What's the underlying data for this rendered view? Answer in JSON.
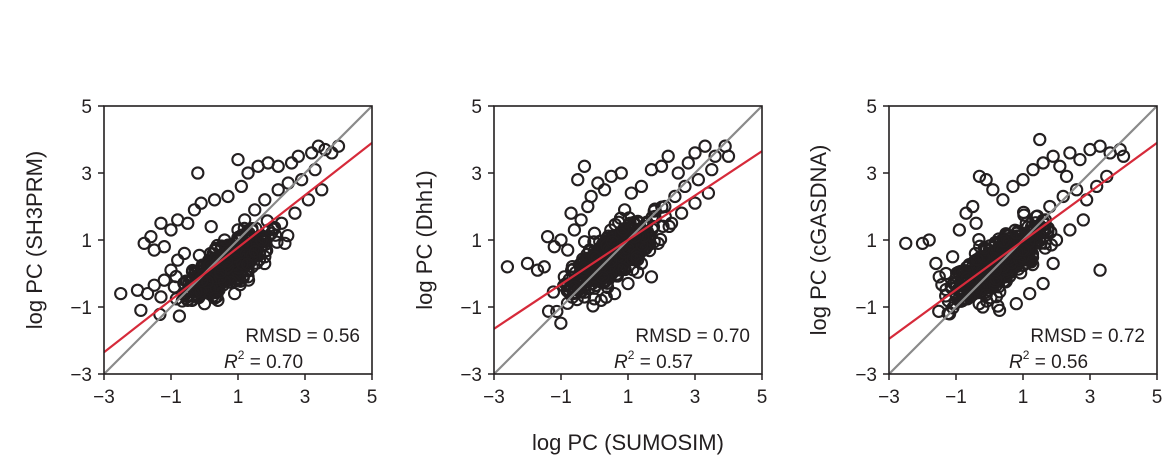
{
  "shared_xlabel": "log PC (SUMOSIM)",
  "chart_data": [
    {
      "type": "scatter",
      "title": "",
      "xlabel": "",
      "ylabel": "log PC (SH3PRM)",
      "xlim": [
        -3,
        5
      ],
      "ylim": [
        -3,
        5
      ],
      "xticks": [
        "−3",
        "−1",
        "1",
        "3",
        "5"
      ],
      "yticks": [
        "5",
        "3",
        "1",
        "−1",
        "−3"
      ],
      "identity_line": {
        "from": [
          -3,
          -3
        ],
        "to": [
          5,
          5
        ],
        "color": "#8a8a8a"
      },
      "fit_line": {
        "from": [
          -3,
          -2.35
        ],
        "to": [
          5,
          3.9
        ],
        "color": "#d62a3a"
      },
      "annotation": {
        "rmsd": "RMSD = 0.56",
        "r2_label": "R",
        "r2_sup": "2",
        "r2_value": " = 0.70"
      },
      "cluster": {
        "center": [
          0.6,
          0.2
        ],
        "spread": 0.55
      },
      "points": [
        [
          -2.5,
          -0.6
        ],
        [
          -2.0,
          -0.5
        ],
        [
          -1.9,
          -1.1
        ],
        [
          -1.7,
          -0.6
        ],
        [
          -1.5,
          -0.35
        ],
        [
          -1.3,
          -0.7
        ],
        [
          -1.2,
          -0.2
        ],
        [
          -1.0,
          0.1
        ],
        [
          -0.8,
          0.4
        ],
        [
          -0.6,
          0.6
        ],
        [
          -1.5,
          0.7
        ],
        [
          -1.8,
          0.9
        ],
        [
          -1.6,
          1.1
        ],
        [
          -1.2,
          0.8
        ],
        [
          -1.0,
          1.3
        ],
        [
          -0.8,
          1.6
        ],
        [
          -1.3,
          1.5
        ],
        [
          -0.5,
          1.5
        ],
        [
          -0.3,
          1.9
        ],
        [
          -0.1,
          2.1
        ],
        [
          0.3,
          2.2
        ],
        [
          0.7,
          2.3
        ],
        [
          1.1,
          2.6
        ],
        [
          1.3,
          3.0
        ],
        [
          1.6,
          3.2
        ],
        [
          1.9,
          3.3
        ],
        [
          2.2,
          3.2
        ],
        [
          2.6,
          3.3
        ],
        [
          2.8,
          3.5
        ],
        [
          3.2,
          3.6
        ],
        [
          3.4,
          3.8
        ],
        [
          3.6,
          3.7
        ],
        [
          3.8,
          3.6
        ],
        [
          4.0,
          3.8
        ],
        [
          3.3,
          3.1
        ],
        [
          2.9,
          2.8
        ],
        [
          2.5,
          2.7
        ],
        [
          2.2,
          2.5
        ],
        [
          1.8,
          2.2
        ],
        [
          1.5,
          1.9
        ],
        [
          1.2,
          1.6
        ],
        [
          1.0,
          1.3
        ],
        [
          0.6,
          1.0
        ],
        [
          2.0,
          1.2
        ],
        [
          2.3,
          1.5
        ],
        [
          2.7,
          1.8
        ],
        [
          3.1,
          2.2
        ],
        [
          3.5,
          2.5
        ],
        [
          2.4,
          0.9
        ],
        [
          1.8,
          0.5
        ],
        [
          1.3,
          -0.1
        ],
        [
          0.9,
          -0.6
        ],
        [
          0.4,
          -0.8
        ],
        [
          0.0,
          -0.9
        ],
        [
          -0.5,
          -0.8
        ],
        [
          -0.2,
          3.0
        ],
        [
          1.0,
          3.4
        ],
        [
          0.2,
          1.4
        ],
        [
          -0.9,
          -0.4
        ],
        [
          1.7,
          1.0
        ]
      ]
    },
    {
      "type": "scatter",
      "title": "",
      "xlabel": "",
      "ylabel": "log PC (Dhh1)",
      "xlim": [
        -3,
        5
      ],
      "ylim": [
        -3,
        5
      ],
      "xticks": [
        "−3",
        "−1",
        "1",
        "3",
        "5"
      ],
      "yticks": [
        "5",
        "3",
        "1",
        "−1",
        "−3"
      ],
      "identity_line": {
        "from": [
          -3,
          -3
        ],
        "to": [
          5,
          5
        ],
        "color": "#8a8a8a"
      },
      "fit_line": {
        "from": [
          -3,
          -1.65
        ],
        "to": [
          5,
          3.65
        ],
        "color": "#d62a3a"
      },
      "annotation": {
        "rmsd": "RMSD = 0.70",
        "r2_label": "R",
        "r2_sup": "2",
        "r2_value": " = 0.57"
      },
      "cluster": {
        "center": [
          0.5,
          0.5
        ],
        "spread": 0.6
      },
      "points": [
        [
          -2.6,
          0.2
        ],
        [
          -2.0,
          0.3
        ],
        [
          -1.7,
          0.1
        ],
        [
          -1.5,
          0.2
        ],
        [
          -1.2,
          0.8
        ],
        [
          -1.0,
          1.0
        ],
        [
          -0.8,
          0.7
        ],
        [
          -0.6,
          1.3
        ],
        [
          -0.4,
          1.6
        ],
        [
          -0.7,
          1.8
        ],
        [
          -0.2,
          2.0
        ],
        [
          -0.1,
          2.3
        ],
        [
          0.1,
          2.7
        ],
        [
          0.3,
          2.5
        ],
        [
          0.5,
          2.9
        ],
        [
          -0.5,
          2.8
        ],
        [
          -0.3,
          3.2
        ],
        [
          0.8,
          3.0
        ],
        [
          1.1,
          2.4
        ],
        [
          1.4,
          2.6
        ],
        [
          1.7,
          3.1
        ],
        [
          2.0,
          3.2
        ],
        [
          2.2,
          3.5
        ],
        [
          2.5,
          3.0
        ],
        [
          2.8,
          3.3
        ],
        [
          3.0,
          3.6
        ],
        [
          3.3,
          3.8
        ],
        [
          3.6,
          3.5
        ],
        [
          3.9,
          3.8
        ],
        [
          4.0,
          3.5
        ],
        [
          3.5,
          3.1
        ],
        [
          3.1,
          2.8
        ],
        [
          2.7,
          2.6
        ],
        [
          2.4,
          2.3
        ],
        [
          2.1,
          2.0
        ],
        [
          1.8,
          1.7
        ],
        [
          1.5,
          1.4
        ],
        [
          1.2,
          1.1
        ],
        [
          2.3,
          1.5
        ],
        [
          2.6,
          1.8
        ],
        [
          3.0,
          2.1
        ],
        [
          3.4,
          2.4
        ],
        [
          1.9,
          0.9
        ],
        [
          1.4,
          0.3
        ],
        [
          1.0,
          -0.3
        ],
        [
          0.6,
          -0.6
        ],
        [
          0.2,
          -0.8
        ],
        [
          -0.3,
          -0.7
        ],
        [
          -0.6,
          -0.4
        ],
        [
          -0.9,
          -0.1
        ],
        [
          1.7,
          -0.1
        ],
        [
          0.0,
          1.2
        ],
        [
          0.9,
          1.9
        ],
        [
          -1.4,
          1.1
        ]
      ]
    },
    {
      "type": "scatter",
      "title": "",
      "xlabel": "",
      "ylabel": "log PC (cGASDNA)",
      "xlim": [
        -3,
        5
      ],
      "ylim": [
        -3,
        5
      ],
      "xticks": [
        "−3",
        "−1",
        "1",
        "3",
        "5"
      ],
      "yticks": [
        "5",
        "3",
        "1",
        "−1",
        "−3"
      ],
      "identity_line": {
        "from": [
          -3,
          -3
        ],
        "to": [
          5,
          5
        ],
        "color": "#8a8a8a"
      },
      "fit_line": {
        "from": [
          -3,
          -1.95
        ],
        "to": [
          5,
          3.9
        ],
        "color": "#d62a3a"
      },
      "annotation": {
        "rmsd": "RMSD = 0.72",
        "r2_label": "R",
        "r2_sup": "2",
        "r2_value": " = 0.56"
      },
      "cluster": {
        "center": [
          0.3,
          0.3
        ],
        "spread": 0.65
      },
      "points": [
        [
          -2.5,
          0.9
        ],
        [
          -2.0,
          0.9
        ],
        [
          -1.8,
          1.0
        ],
        [
          -1.6,
          0.3
        ],
        [
          -1.5,
          -0.1
        ],
        [
          -1.3,
          0.0
        ],
        [
          -1.1,
          0.5
        ],
        [
          -0.9,
          1.3
        ],
        [
          -0.7,
          1.8
        ],
        [
          -0.5,
          2.0
        ],
        [
          -0.3,
          2.9
        ],
        [
          -0.1,
          2.8
        ],
        [
          0.1,
          2.5
        ],
        [
          0.4,
          2.2
        ],
        [
          0.7,
          2.6
        ],
        [
          1.0,
          2.8
        ],
        [
          1.3,
          3.1
        ],
        [
          1.6,
          3.3
        ],
        [
          1.9,
          3.5
        ],
        [
          2.1,
          3.2
        ],
        [
          2.4,
          3.6
        ],
        [
          2.7,
          3.4
        ],
        [
          3.0,
          3.7
        ],
        [
          3.3,
          3.8
        ],
        [
          3.6,
          3.6
        ],
        [
          3.9,
          3.7
        ],
        [
          4.0,
          3.5
        ],
        [
          1.5,
          4.0
        ],
        [
          2.3,
          2.9
        ],
        [
          2.6,
          2.5
        ],
        [
          2.9,
          2.2
        ],
        [
          3.2,
          2.6
        ],
        [
          3.5,
          2.9
        ],
        [
          1.8,
          2.0
        ],
        [
          1.4,
          1.7
        ],
        [
          1.1,
          1.5
        ],
        [
          0.8,
          1.2
        ],
        [
          2.0,
          1.0
        ],
        [
          2.4,
          1.3
        ],
        [
          2.8,
          1.6
        ],
        [
          1.9,
          0.3
        ],
        [
          1.6,
          -0.3
        ],
        [
          1.2,
          -0.6
        ],
        [
          0.8,
          -0.9
        ],
        [
          0.3,
          -1.1
        ],
        [
          -0.2,
          -1.0
        ],
        [
          -0.6,
          -0.7
        ],
        [
          -1.0,
          -0.3
        ],
        [
          3.3,
          0.1
        ],
        [
          1.0,
          0.7
        ],
        [
          -0.4,
          1.5
        ],
        [
          2.2,
          2.3
        ]
      ]
    }
  ]
}
